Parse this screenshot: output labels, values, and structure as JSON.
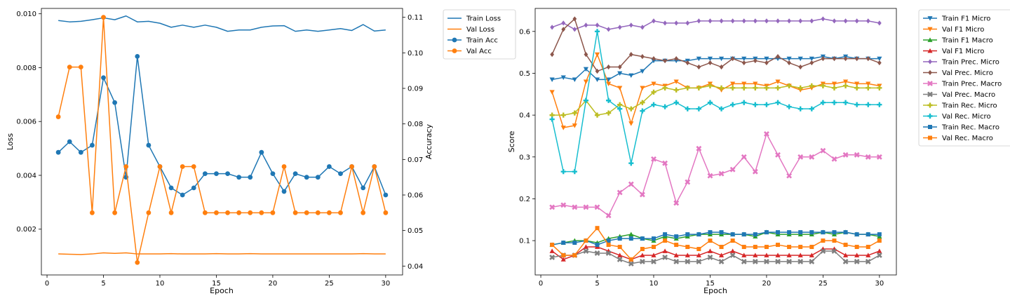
{
  "chart_data": [
    {
      "type": "line",
      "xlabel": "Epoch",
      "ylabel": "Loss",
      "ylabel_right": "Accuracy",
      "xlim": [
        -0.5,
        31.5
      ],
      "ylim": [
        0.0003,
        0.0102
      ],
      "ylim_right": [
        0.0375,
        0.1125
      ],
      "x_ticks": [
        0,
        5,
        10,
        15,
        20,
        25,
        30
      ],
      "y_ticks": [
        0.002,
        0.004,
        0.006,
        0.008,
        0.01
      ],
      "y_tick_labels": [
        "0.002",
        "0.004",
        "0.006",
        "0.008",
        "0.010"
      ],
      "y_right_ticks": [
        0.04,
        0.05,
        0.06,
        0.07,
        0.08,
        0.09,
        0.1,
        0.11
      ],
      "y_right_tick_labels": [
        "0.04",
        "0.05",
        "0.06",
        "0.07",
        "0.08",
        "0.09",
        "0.10",
        "0.11"
      ],
      "legend_position": "outside-top-right",
      "x": [
        1,
        2,
        3,
        4,
        5,
        6,
        7,
        8,
        9,
        10,
        11,
        12,
        13,
        14,
        15,
        16,
        17,
        18,
        19,
        20,
        21,
        22,
        23,
        24,
        25,
        26,
        27,
        28,
        29,
        30
      ],
      "series": [
        {
          "name": "Train Loss",
          "axis": "left",
          "color": "#1f77b4",
          "marker": "none",
          "values": [
            0.00975,
            0.0097,
            0.00972,
            0.00978,
            0.00985,
            0.00978,
            0.00992,
            0.0097,
            0.00972,
            0.00965,
            0.0095,
            0.00958,
            0.0095,
            0.00958,
            0.0095,
            0.00935,
            0.0094,
            0.0094,
            0.0095,
            0.00955,
            0.00956,
            0.00935,
            0.0094,
            0.00935,
            0.0094,
            0.00945,
            0.00938,
            0.0096,
            0.00936,
            0.0094
          ]
        },
        {
          "name": "Val Loss",
          "axis": "left",
          "color": "#ff7f0e",
          "marker": "none",
          "values": [
            0.00108,
            0.00107,
            0.00106,
            0.00108,
            0.00112,
            0.0011,
            0.00112,
            0.00108,
            0.00108,
            0.00108,
            0.00109,
            0.00108,
            0.00108,
            0.00108,
            0.00109,
            0.00108,
            0.00108,
            0.00109,
            0.00108,
            0.00108,
            0.00108,
            0.00108,
            0.00108,
            0.00108,
            0.00108,
            0.00108,
            0.00108,
            0.00109,
            0.00108,
            0.00108
          ]
        },
        {
          "name": "Train Acc",
          "axis": "right",
          "color": "#1f77b4",
          "marker": "circle",
          "values": [
            0.072,
            0.075,
            0.072,
            0.074,
            0.093,
            0.086,
            0.065,
            0.099,
            0.074,
            0.068,
            0.062,
            0.06,
            0.062,
            0.066,
            0.066,
            0.066,
            0.065,
            0.065,
            0.072,
            0.066,
            0.061,
            0.066,
            0.065,
            0.065,
            0.068,
            0.066,
            0.068,
            0.062,
            0.068,
            0.06
          ]
        },
        {
          "name": "Val Acc",
          "axis": "right",
          "color": "#ff7f0e",
          "marker": "circle",
          "values": [
            0.082,
            0.096,
            0.096,
            0.055,
            0.11,
            0.055,
            0.068,
            0.041,
            0.055,
            0.068,
            0.055,
            0.068,
            0.068,
            0.055,
            0.055,
            0.055,
            0.055,
            0.055,
            0.055,
            0.055,
            0.068,
            0.055,
            0.055,
            0.055,
            0.055,
            0.055,
            0.068,
            0.055,
            0.068,
            0.055
          ]
        }
      ]
    },
    {
      "type": "line",
      "xlabel": "Epoch",
      "ylabel": "Score",
      "xlim": [
        -0.5,
        31.5
      ],
      "ylim": [
        0.018,
        0.655
      ],
      "x_ticks": [
        0,
        5,
        10,
        15,
        20,
        25,
        30
      ],
      "y_ticks": [
        0.1,
        0.2,
        0.3,
        0.4,
        0.5,
        0.6
      ],
      "y_tick_labels": [
        "0.1",
        "0.2",
        "0.3",
        "0.4",
        "0.5",
        "0.6"
      ],
      "legend_position": "outside-top-right",
      "x": [
        1,
        2,
        3,
        4,
        5,
        6,
        7,
        8,
        9,
        10,
        11,
        12,
        13,
        14,
        15,
        16,
        17,
        18,
        19,
        20,
        21,
        22,
        23,
        24,
        25,
        26,
        27,
        28,
        29,
        30
      ],
      "series": [
        {
          "name": "Train F1 Micro",
          "color": "#1f77b4",
          "marker": "tri-down",
          "values": [
            0.485,
            0.49,
            0.485,
            0.51,
            0.485,
            0.485,
            0.5,
            0.495,
            0.505,
            0.53,
            0.53,
            0.53,
            0.53,
            0.535,
            0.535,
            0.535,
            0.535,
            0.535,
            0.535,
            0.535,
            0.535,
            0.535,
            0.535,
            0.535,
            0.54,
            0.535,
            0.54,
            0.535,
            0.535,
            0.535
          ]
        },
        {
          "name": "Val F1 Micro",
          "color": "#ff7f0e",
          "marker": "tri-down",
          "values": [
            0.455,
            0.37,
            0.375,
            0.48,
            0.545,
            0.475,
            0.465,
            0.38,
            0.465,
            0.475,
            0.47,
            0.48,
            0.465,
            0.465,
            0.475,
            0.46,
            0.475,
            0.475,
            0.475,
            0.47,
            0.48,
            0.47,
            0.46,
            0.465,
            0.475,
            0.475,
            0.48,
            0.475,
            0.475,
            0.47
          ]
        },
        {
          "name": "Train F1 Macro",
          "color": "#2ca02c",
          "marker": "tri-up",
          "values": [
            0.09,
            0.095,
            0.1,
            0.1,
            0.095,
            0.105,
            0.11,
            0.115,
            0.105,
            0.1,
            0.11,
            0.105,
            0.11,
            0.115,
            0.115,
            0.115,
            0.115,
            0.115,
            0.11,
            0.12,
            0.115,
            0.115,
            0.115,
            0.115,
            0.12,
            0.115,
            0.12,
            0.115,
            0.115,
            0.11
          ]
        },
        {
          "name": "Val F1 Micro",
          "color": "#d62728",
          "marker": "tri-up",
          "values": [
            0.075,
            0.055,
            0.065,
            0.085,
            0.085,
            0.075,
            0.065,
            0.055,
            0.065,
            0.065,
            0.075,
            0.065,
            0.065,
            0.065,
            0.075,
            0.065,
            0.075,
            0.065,
            0.065,
            0.065,
            0.065,
            0.065,
            0.065,
            0.065,
            0.08,
            0.08,
            0.065,
            0.065,
            0.065,
            0.075
          ]
        },
        {
          "name": "Train Prec. Micro",
          "color": "#9467bd",
          "marker": "diamond",
          "values": [
            0.61,
            0.62,
            0.605,
            0.615,
            0.615,
            0.605,
            0.61,
            0.615,
            0.61,
            0.625,
            0.62,
            0.62,
            0.62,
            0.625,
            0.625,
            0.625,
            0.625,
            0.625,
            0.625,
            0.625,
            0.625,
            0.625,
            0.625,
            0.625,
            0.63,
            0.625,
            0.625,
            0.625,
            0.625,
            0.62
          ]
        },
        {
          "name": "Val Prec. Micro",
          "color": "#8c564b",
          "marker": "diamond",
          "values": [
            0.545,
            0.605,
            0.63,
            0.545,
            0.505,
            0.515,
            0.515,
            0.545,
            0.54,
            0.535,
            0.53,
            0.535,
            0.525,
            0.515,
            0.525,
            0.515,
            0.535,
            0.525,
            0.53,
            0.525,
            0.54,
            0.525,
            0.515,
            0.525,
            0.535,
            0.535,
            0.535,
            0.535,
            0.535,
            0.525
          ]
        },
        {
          "name": "Train Prec. Macro",
          "color": "#e377c2",
          "marker": "x",
          "values": [
            0.18,
            0.185,
            0.18,
            0.18,
            0.18,
            0.16,
            0.215,
            0.235,
            0.21,
            0.295,
            0.285,
            0.19,
            0.24,
            0.32,
            0.255,
            0.26,
            0.27,
            0.3,
            0.265,
            0.355,
            0.305,
            0.255,
            0.3,
            0.3,
            0.315,
            0.295,
            0.305,
            0.305,
            0.3,
            0.3
          ]
        },
        {
          "name": "Val Prec. Macro",
          "color": "#7f7f7f",
          "marker": "x",
          "values": [
            0.06,
            0.065,
            0.065,
            0.075,
            0.07,
            0.07,
            0.055,
            0.045,
            0.05,
            0.05,
            0.06,
            0.05,
            0.05,
            0.05,
            0.06,
            0.05,
            0.065,
            0.05,
            0.05,
            0.05,
            0.05,
            0.05,
            0.05,
            0.05,
            0.075,
            0.075,
            0.05,
            0.05,
            0.05,
            0.065
          ]
        },
        {
          "name": "Train Rec. Micro",
          "color": "#bcbd22",
          "marker": "plus",
          "values": [
            0.4,
            0.4,
            0.405,
            0.435,
            0.4,
            0.405,
            0.425,
            0.415,
            0.43,
            0.455,
            0.465,
            0.46,
            0.465,
            0.465,
            0.47,
            0.465,
            0.465,
            0.465,
            0.465,
            0.465,
            0.465,
            0.47,
            0.465,
            0.47,
            0.47,
            0.465,
            0.47,
            0.465,
            0.465,
            0.465
          ]
        },
        {
          "name": "Val Rec. Micro",
          "color": "#17becf",
          "marker": "plus",
          "values": [
            0.39,
            0.265,
            0.265,
            0.435,
            0.6,
            0.435,
            0.415,
            0.285,
            0.41,
            0.425,
            0.42,
            0.43,
            0.415,
            0.415,
            0.43,
            0.415,
            0.425,
            0.43,
            0.425,
            0.425,
            0.43,
            0.42,
            0.415,
            0.415,
            0.43,
            0.43,
            0.43,
            0.425,
            0.425,
            0.425
          ]
        },
        {
          "name": "Train Rec. Macro",
          "color": "#1f77b4",
          "marker": "square",
          "values": [
            0.09,
            0.095,
            0.095,
            0.1,
            0.09,
            0.1,
            0.105,
            0.105,
            0.105,
            0.105,
            0.115,
            0.11,
            0.115,
            0.115,
            0.12,
            0.12,
            0.115,
            0.115,
            0.115,
            0.12,
            0.12,
            0.12,
            0.12,
            0.12,
            0.12,
            0.12,
            0.12,
            0.115,
            0.115,
            0.115
          ]
        },
        {
          "name": "Val Rec. Macro",
          "color": "#ff7f0e",
          "marker": "square",
          "values": [
            0.09,
            0.065,
            0.065,
            0.1,
            0.13,
            0.09,
            0.085,
            0.055,
            0.08,
            0.085,
            0.1,
            0.09,
            0.085,
            0.08,
            0.1,
            0.085,
            0.1,
            0.085,
            0.085,
            0.085,
            0.09,
            0.085,
            0.085,
            0.085,
            0.1,
            0.1,
            0.09,
            0.085,
            0.085,
            0.1
          ]
        }
      ]
    }
  ]
}
